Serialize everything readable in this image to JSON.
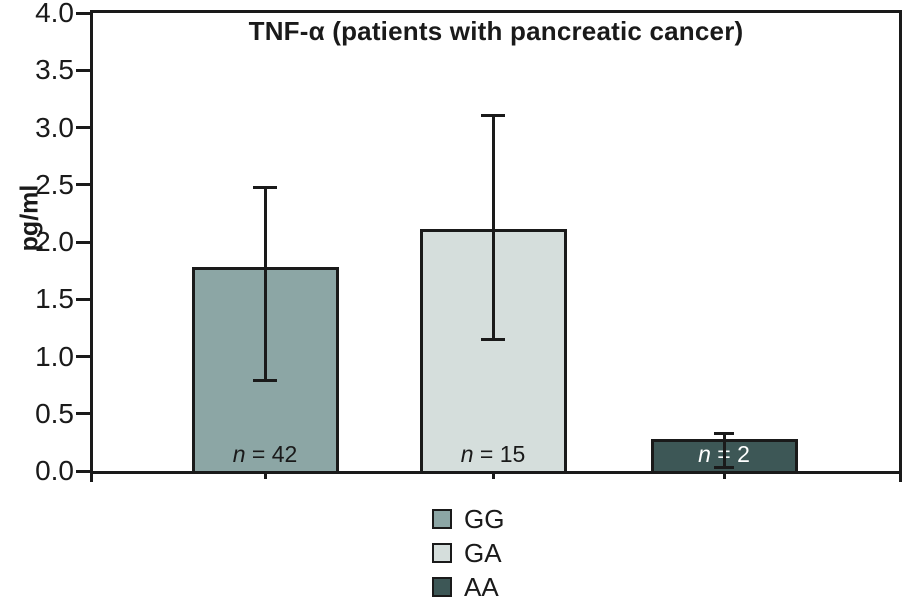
{
  "figure": {
    "title": "TNF-α (patients with pancreatic cancer)",
    "ylabel": "pg/ml"
  },
  "chart_data": {
    "type": "bar",
    "title": "TNF-α (patients with pancreatic cancer)",
    "xlabel": "",
    "ylabel": "pg/ml",
    "ylim": [
      0,
      4
    ],
    "y_tick_step": 0.5,
    "y_tick_labels": [
      "0.0",
      "0.5",
      "1.0",
      "1.5",
      "2.0",
      "2.5",
      "3.0",
      "3.5",
      "4.0"
    ],
    "grid": false,
    "legend_position": "bottom-center",
    "categories": [
      "GG",
      "GA",
      "AA"
    ],
    "bars": [
      {
        "category": "GG",
        "value": 1.78,
        "error_low": 0.79,
        "error_high": 2.48,
        "n": 42,
        "n_label": "n = 42",
        "color": "#8ca6a5",
        "n_label_color": "#1a1a1a"
      },
      {
        "category": "GA",
        "value": 2.11,
        "error_low": 1.14,
        "error_high": 3.11,
        "n": 15,
        "n_label": "n = 15",
        "color": "#d5dedc",
        "n_label_color": "#1a1a1a"
      },
      {
        "category": "AA",
        "value": 0.28,
        "error_low": 0.03,
        "error_high": 0.33,
        "n": 2,
        "n_label": "n = 2",
        "color": "#3d5756",
        "n_label_color": "#ffffff"
      }
    ],
    "legend": [
      {
        "label": "GG",
        "color": "#8ca6a5"
      },
      {
        "label": "GA",
        "color": "#d5dedc"
      },
      {
        "label": "AA",
        "color": "#3d5756"
      }
    ],
    "line_color": "#1a1a1a"
  }
}
